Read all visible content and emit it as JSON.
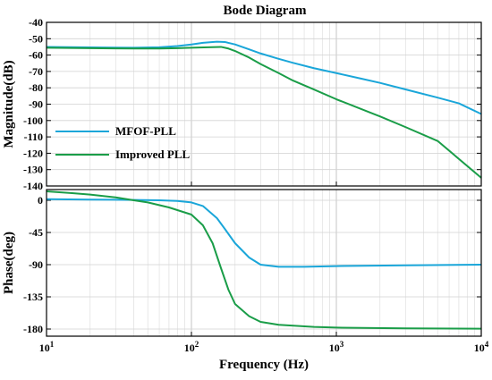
{
  "chart_data": {
    "type": "line",
    "title": "Bode Diagram",
    "xlabel": "Frequency  (Hz)",
    "x_scale": "log",
    "xlim": [
      10,
      10000
    ],
    "x_ticks": [
      {
        "value": 10,
        "base": "10",
        "exp": "1"
      },
      {
        "value": 100,
        "base": "10",
        "exp": "2"
      },
      {
        "value": 1000,
        "base": "10",
        "exp": "3"
      },
      {
        "value": 10000,
        "base": "10",
        "exp": "4"
      }
    ],
    "grid": true,
    "legend": {
      "placement": "lower-left (magnitude panel)",
      "entries": [
        {
          "name": "MFOF-PLL",
          "color": "#1aa6d9"
        },
        {
          "name": "Improved PLL",
          "color": "#1a9d48"
        }
      ]
    },
    "subplots": [
      {
        "id": "magnitude",
        "ylabel": "Magnitude(dB)",
        "ylim": [
          -140,
          -40
        ],
        "y_ticks": [
          -40,
          -50,
          -60,
          -70,
          -80,
          -90,
          -100,
          -110,
          -120,
          -130,
          -140
        ],
        "series": [
          {
            "name": "MFOF-PLL",
            "color": "#1aa6d9",
            "points": [
              [
                10,
                -55
              ],
              [
                20,
                -55.3
              ],
              [
                40,
                -55.5
              ],
              [
                60,
                -55.2
              ],
              [
                80,
                -54.5
              ],
              [
                100,
                -53.5
              ],
              [
                120,
                -52.5
              ],
              [
                150,
                -51.8
              ],
              [
                170,
                -52
              ],
              [
                200,
                -53.5
              ],
              [
                250,
                -56.5
              ],
              [
                300,
                -59
              ],
              [
                400,
                -62.3
              ],
              [
                500,
                -64.7
              ],
              [
                700,
                -68
              ],
              [
                1000,
                -71
              ],
              [
                1500,
                -74.5
              ],
              [
                2000,
                -77
              ],
              [
                3000,
                -81
              ],
              [
                5000,
                -86
              ],
              [
                7000,
                -89.5
              ],
              [
                10000,
                -96
              ]
            ]
          },
          {
            "name": "Improved PLL",
            "color": "#1a9d48",
            "points": [
              [
                10,
                -55.5
              ],
              [
                20,
                -55.8
              ],
              [
                40,
                -56
              ],
              [
                60,
                -56
              ],
              [
                80,
                -55.8
              ],
              [
                100,
                -55.5
              ],
              [
                130,
                -55.2
              ],
              [
                160,
                -55
              ],
              [
                180,
                -56
              ],
              [
                200,
                -57.5
              ],
              [
                250,
                -61.5
              ],
              [
                300,
                -65.5
              ],
              [
                400,
                -71
              ],
              [
                500,
                -75.5
              ],
              [
                700,
                -81
              ],
              [
                1000,
                -87
              ],
              [
                2000,
                -97.5
              ],
              [
                3000,
                -104
              ],
              [
                5000,
                -112.5
              ],
              [
                10000,
                -135
              ]
            ]
          }
        ]
      },
      {
        "id": "phase",
        "ylabel": "Phase(deg)",
        "ylim": [
          -190,
          15
        ],
        "y_ticks": [
          0,
          -45,
          -90,
          -135,
          -180
        ],
        "series": [
          {
            "name": "MFOF-PLL",
            "color": "#1aa6d9",
            "points": [
              [
                10,
                1.5
              ],
              [
                20,
                1
              ],
              [
                40,
                0.5
              ],
              [
                60,
                0
              ],
              [
                80,
                -1
              ],
              [
                100,
                -3
              ],
              [
                120,
                -8
              ],
              [
                150,
                -25
              ],
              [
                170,
                -40
              ],
              [
                200,
                -60
              ],
              [
                250,
                -80
              ],
              [
                300,
                -90
              ],
              [
                400,
                -93
              ],
              [
                600,
                -93
              ],
              [
                1000,
                -92
              ],
              [
                3000,
                -91
              ],
              [
                10000,
                -90
              ]
            ]
          },
          {
            "name": "Improved PLL",
            "color": "#1a9d48",
            "points": [
              [
                10,
                12.5
              ],
              [
                15,
                10
              ],
              [
                20,
                8
              ],
              [
                30,
                4
              ],
              [
                40,
                0
              ],
              [
                50,
                -3
              ],
              [
                70,
                -10
              ],
              [
                100,
                -20
              ],
              [
                120,
                -35
              ],
              [
                140,
                -60
              ],
              [
                160,
                -95
              ],
              [
                180,
                -125
              ],
              [
                200,
                -145
              ],
              [
                250,
                -162
              ],
              [
                300,
                -170
              ],
              [
                400,
                -174
              ],
              [
                700,
                -177
              ],
              [
                1000,
                -178
              ],
              [
                3000,
                -179
              ],
              [
                10000,
                -179.5
              ]
            ]
          }
        ]
      }
    ]
  }
}
